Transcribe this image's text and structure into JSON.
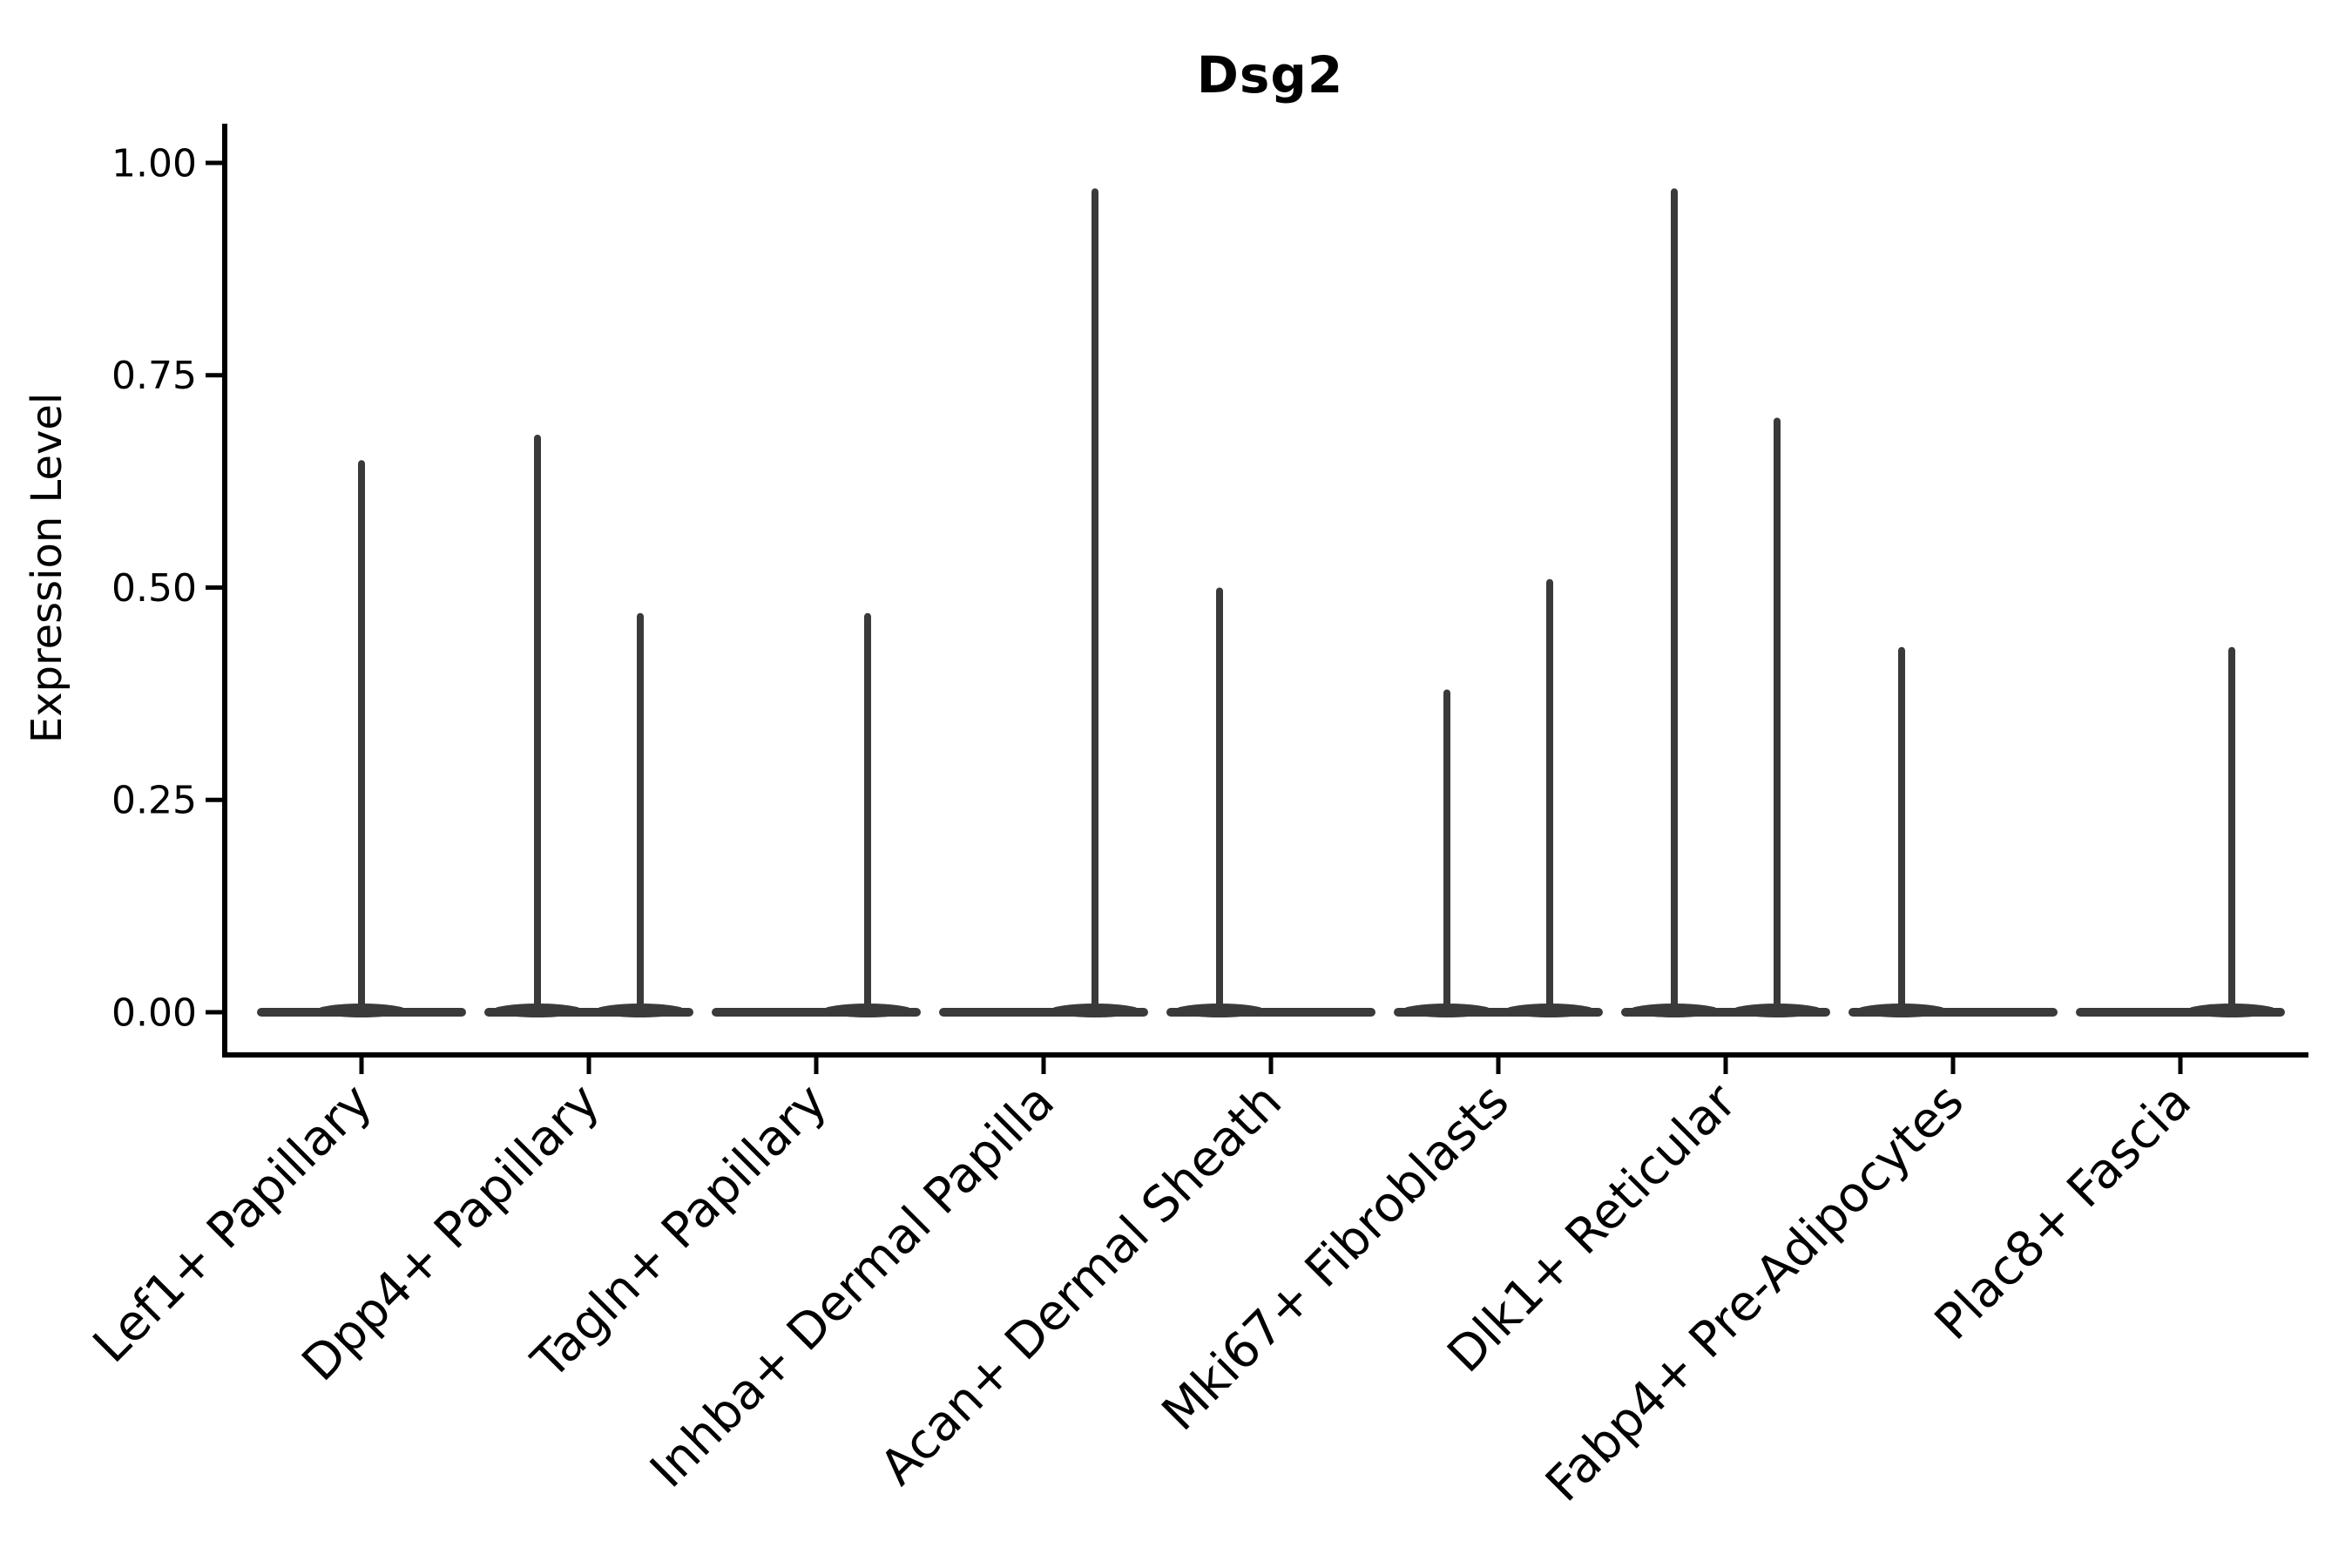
{
  "chart_data": {
    "type": "violin",
    "title": "Dsg2",
    "ylabel": "Expression Level",
    "xlabel": "",
    "ylim": [
      0,
      1.05
    ],
    "yticks": [
      0,
      0.25,
      0.5,
      0.75,
      1.0
    ],
    "ytick_labels": [
      "0.00",
      "0.25",
      "0.50",
      "0.75",
      "1.00"
    ],
    "x_tick_rotation": 45,
    "grid": false,
    "legend": "none",
    "colors": {
      "violin": "#3a3a3a",
      "axis": "#000000",
      "text": "#000000",
      "background": "#ffffff"
    },
    "categories": [
      {
        "label": "Lef1+ Papillary",
        "spikes": [
          {
            "pos": "center",
            "max": 0.65
          }
        ]
      },
      {
        "label": "Dpp4+ Papillary",
        "spikes": [
          {
            "pos": "left",
            "max": 0.68
          },
          {
            "pos": "right",
            "max": 0.47
          }
        ]
      },
      {
        "label": "Tagln+ Papillary",
        "spikes": [
          {
            "pos": "right",
            "max": 0.47
          }
        ]
      },
      {
        "label": "Inhba+ Dermal Papilla",
        "spikes": [
          {
            "pos": "right",
            "max": 0.97
          }
        ]
      },
      {
        "label": "Acan+ Dermal Sheath",
        "spikes": [
          {
            "pos": "left",
            "max": 0.5
          }
        ]
      },
      {
        "label": "Mki67+ Fibroblasts",
        "spikes": [
          {
            "pos": "left",
            "max": 0.38
          },
          {
            "pos": "right",
            "max": 0.51
          }
        ]
      },
      {
        "label": "Dlk1+ Reticular",
        "spikes": [
          {
            "pos": "left",
            "max": 0.97
          },
          {
            "pos": "right",
            "max": 0.7
          }
        ]
      },
      {
        "label": "Fabp4+ Pre-Adipocytes",
        "spikes": [
          {
            "pos": "left",
            "max": 0.43
          }
        ]
      },
      {
        "label": "Plac8+ Fascia",
        "spikes": [
          {
            "pos": "right",
            "max": 0.43
          }
        ]
      }
    ]
  }
}
